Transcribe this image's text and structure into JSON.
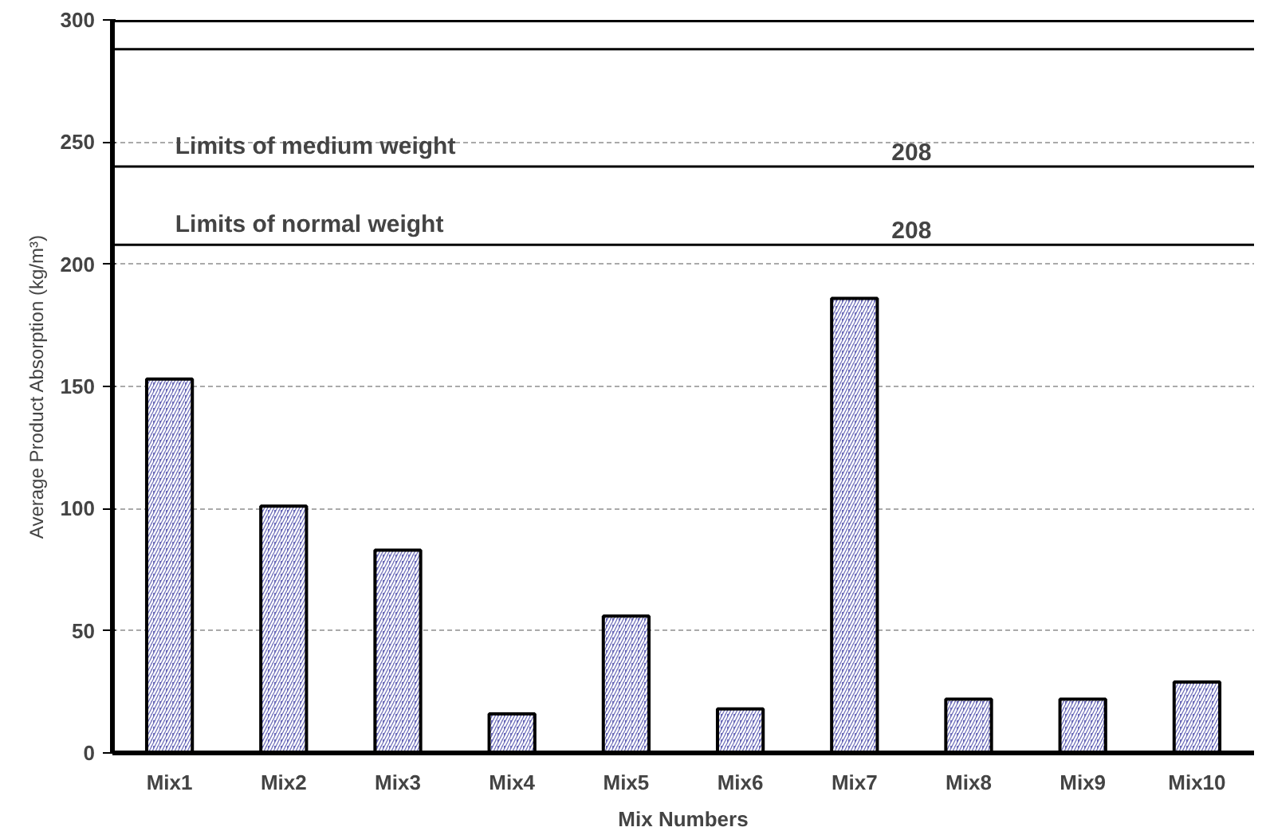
{
  "chart_data": {
    "type": "bar",
    "categories": [
      "Mix1",
      "Mix2",
      "Mix3",
      "Mix4",
      "Mix5",
      "Mix6",
      "Mix7",
      "Mix8",
      "Mix9",
      "Mix10"
    ],
    "values": [
      153,
      101,
      83,
      16,
      56,
      18,
      186,
      22,
      22,
      29
    ],
    "color": "#6a6ab8",
    "xlabel": "Mix Numbers",
    "ylabel": "Average Product Absorption (kg/m³)",
    "ylim": [
      0,
      300
    ],
    "yticks": [
      0,
      50,
      100,
      150,
      200,
      250,
      300
    ],
    "grid": "y",
    "ref_lines": [
      {
        "axis": "y",
        "value": 288,
        "label": null
      },
      {
        "axis": "y",
        "value": 240,
        "label": "Limits of medium weight"
      },
      {
        "axis": "y",
        "value": 208,
        "label": "Limits of normal weight"
      }
    ],
    "annotations": [
      {
        "text": "208",
        "x": "Mix7",
        "y": 240
      },
      {
        "text": "208",
        "x": "Mix7",
        "y": 208
      }
    ]
  }
}
